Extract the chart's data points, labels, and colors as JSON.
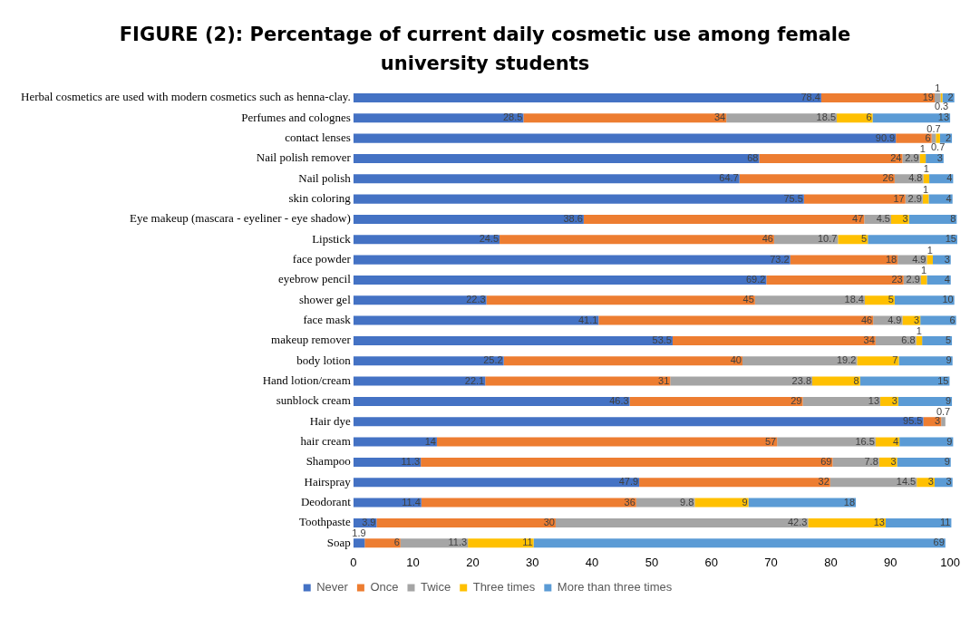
{
  "chart_data": {
    "type": "bar",
    "orientation": "horizontal",
    "stacked": true,
    "title": "FIGURE (2): Percentage of current daily cosmetic use among female university students",
    "categories": [
      "Herbal cosmetics are used with modern cosmetics such as henna-clay.",
      "Perfumes and colognes",
      "contact lenses",
      "Nail polish remover",
      "Nail polish",
      "skin coloring",
      "Eye makeup (mascara - eyeliner - eye shadow)",
      "Lipstick",
      "face powder",
      "eyebrow pencil",
      "shower gel",
      "face mask",
      "makeup remover",
      "body lotion",
      "Hand lotion/cream",
      "sunblock cream",
      "Hair dye",
      "hair cream",
      "Shampoo",
      "Hairspray",
      "Deodorant",
      "Toothpaste",
      "Soap"
    ],
    "series": [
      {
        "name": "Never",
        "color": "#4472c4",
        "values": [
          78.4,
          28.5,
          90.9,
          68,
          64.7,
          75.5,
          38.6,
          24.5,
          73.2,
          69.2,
          22.3,
          41.1,
          53.5,
          25.2,
          22.1,
          46.3,
          95.5,
          14,
          11.3,
          47.9,
          11.4,
          3.9,
          1.9
        ]
      },
      {
        "name": "Once",
        "color": "#ed7d31",
        "values": [
          19,
          34,
          6,
          24,
          26,
          17,
          47,
          46,
          18,
          23,
          45,
          46,
          34,
          40,
          31,
          29,
          3,
          57,
          69,
          32,
          36,
          30,
          6
        ]
      },
      {
        "name": "Twice",
        "color": "#a5a5a5",
        "values": [
          1.0,
          18.5,
          0.7,
          2.9,
          4.8,
          2.9,
          4.5,
          10.7,
          4.9,
          2.9,
          18.4,
          4.9,
          6.8,
          19.2,
          23.8,
          13,
          0.7,
          16.5,
          7.8,
          14.5,
          9.8,
          42.3,
          11.3
        ]
      },
      {
        "name": "Three times",
        "color": "#ffc000",
        "values": [
          0.3,
          6,
          0.7,
          1,
          1,
          1,
          3,
          5,
          1,
          1,
          5,
          3,
          1,
          7,
          8,
          3,
          null,
          4,
          3,
          3,
          9,
          13,
          11
        ]
      },
      {
        "name": "More than three times",
        "color": "#5b9bd5",
        "values": [
          2,
          13,
          2,
          3,
          4,
          4,
          8,
          15,
          3,
          4,
          10,
          6,
          5,
          9,
          15,
          9,
          null,
          9,
          9,
          3,
          18,
          11,
          69
        ]
      }
    ],
    "xlim": [
      0,
      101.2
    ],
    "xticks": [
      0,
      10,
      20,
      30,
      40,
      50,
      60,
      70,
      80,
      90,
      100
    ],
    "data_labels": true,
    "legend": "bottom",
    "grid": false
  }
}
